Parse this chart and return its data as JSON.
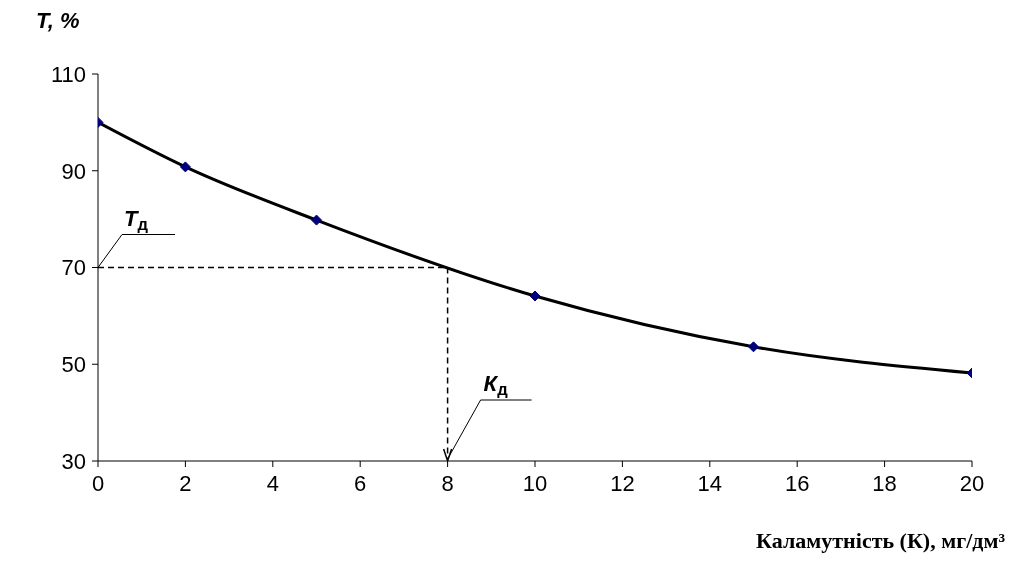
{
  "chart_data": {
    "type": "line",
    "ylabel": "T, %",
    "xlabel": "Каламутність (К), мг/дм³",
    "x": [
      0,
      2,
      5,
      10,
      15,
      20
    ],
    "series": [
      {
        "color": "#000000",
        "values": [
          100,
          90.8,
          79.8,
          64.1,
          53.6,
          48.2
        ]
      }
    ],
    "xlim": [
      0,
      20
    ],
    "xticks": [
      0,
      2,
      4,
      6,
      8,
      10,
      12,
      14,
      16,
      18,
      20
    ],
    "ylim": [
      30,
      110
    ],
    "yticks": [
      30,
      50,
      70,
      90,
      110
    ],
    "grid": false,
    "legend": false,
    "marker": "diamond",
    "line_style": "solid",
    "ref_lines": [
      {
        "axis": "y",
        "value": 70,
        "label": "T$_{д}$",
        "line_style": "dashed",
        "color": "#000000"
      },
      {
        "axis": "x",
        "value": 8,
        "label": "К$_{д}$",
        "line_style": "dashed",
        "color": "#000000"
      }
    ]
  }
}
